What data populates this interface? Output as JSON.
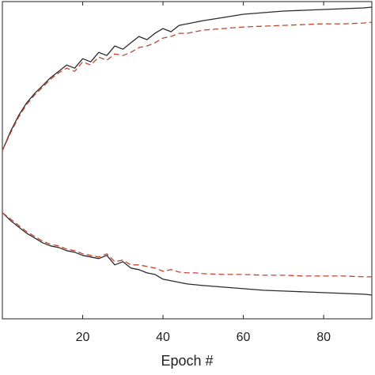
{
  "chart_data": {
    "type": "line",
    "xlabel": "Epoch #",
    "ylabel": "",
    "title": "",
    "xlim": [
      0,
      92
    ],
    "ylim": [
      -1,
      1
    ],
    "x_ticks": [
      20,
      40,
      60,
      80
    ],
    "grid": false,
    "legend": "none",
    "series": [
      {
        "style": "solid",
        "color": "#2b2b2b",
        "x": [
          0,
          2,
          4,
          6,
          8,
          10,
          12,
          14,
          16,
          18,
          20,
          22,
          24,
          26,
          28,
          30,
          32,
          34,
          36,
          38,
          40,
          42,
          44,
          46,
          48,
          50,
          55,
          60,
          65,
          70,
          75,
          80,
          85,
          90,
          92
        ],
        "y": [
          0.06,
          0.18,
          0.28,
          0.36,
          0.42,
          0.47,
          0.52,
          0.56,
          0.6,
          0.58,
          0.64,
          0.62,
          0.68,
          0.66,
          0.72,
          0.7,
          0.74,
          0.78,
          0.76,
          0.8,
          0.83,
          0.81,
          0.85,
          0.86,
          0.87,
          0.88,
          0.9,
          0.92,
          0.93,
          0.94,
          0.945,
          0.95,
          0.955,
          0.96,
          0.965
        ]
      },
      {
        "style": "dashed",
        "color": "#c0452e",
        "x": [
          0,
          2,
          4,
          6,
          8,
          10,
          12,
          14,
          16,
          18,
          20,
          22,
          24,
          26,
          28,
          30,
          32,
          34,
          36,
          38,
          40,
          42,
          44,
          46,
          48,
          50,
          55,
          60,
          65,
          70,
          75,
          80,
          85,
          90,
          92
        ],
        "y": [
          0.06,
          0.17,
          0.27,
          0.35,
          0.41,
          0.46,
          0.51,
          0.55,
          0.58,
          0.56,
          0.62,
          0.6,
          0.65,
          0.63,
          0.67,
          0.66,
          0.68,
          0.71,
          0.72,
          0.74,
          0.77,
          0.78,
          0.8,
          0.8,
          0.81,
          0.82,
          0.83,
          0.84,
          0.845,
          0.85,
          0.855,
          0.86,
          0.86,
          0.865,
          0.87
        ]
      },
      {
        "style": "solid",
        "color": "#2b2b2b",
        "x": [
          0,
          2,
          4,
          6,
          8,
          10,
          12,
          14,
          16,
          18,
          20,
          22,
          24,
          26,
          28,
          30,
          32,
          34,
          36,
          38,
          40,
          42,
          44,
          46,
          48,
          50,
          55,
          60,
          65,
          70,
          75,
          80,
          85,
          90,
          92
        ],
        "y": [
          -0.33,
          -0.38,
          -0.42,
          -0.46,
          -0.49,
          -0.52,
          -0.54,
          -0.55,
          -0.57,
          -0.58,
          -0.6,
          -0.61,
          -0.62,
          -0.6,
          -0.66,
          -0.64,
          -0.68,
          -0.69,
          -0.71,
          -0.72,
          -0.75,
          -0.76,
          -0.77,
          -0.78,
          -0.785,
          -0.79,
          -0.8,
          -0.81,
          -0.82,
          -0.825,
          -0.83,
          -0.835,
          -0.84,
          -0.845,
          -0.85
        ]
      },
      {
        "style": "dashed",
        "color": "#c0452e",
        "x": [
          0,
          2,
          4,
          6,
          8,
          10,
          12,
          14,
          16,
          18,
          20,
          22,
          24,
          26,
          28,
          30,
          32,
          34,
          36,
          38,
          40,
          42,
          44,
          46,
          48,
          50,
          55,
          60,
          65,
          70,
          75,
          80,
          85,
          90,
          92
        ],
        "y": [
          -0.33,
          -0.37,
          -0.41,
          -0.45,
          -0.48,
          -0.51,
          -0.53,
          -0.54,
          -0.56,
          -0.57,
          -0.59,
          -0.6,
          -0.61,
          -0.59,
          -0.64,
          -0.63,
          -0.66,
          -0.66,
          -0.67,
          -0.68,
          -0.7,
          -0.69,
          -0.705,
          -0.71,
          -0.71,
          -0.715,
          -0.72,
          -0.72,
          -0.725,
          -0.725,
          -0.73,
          -0.73,
          -0.73,
          -0.735,
          -0.735
        ]
      }
    ]
  }
}
